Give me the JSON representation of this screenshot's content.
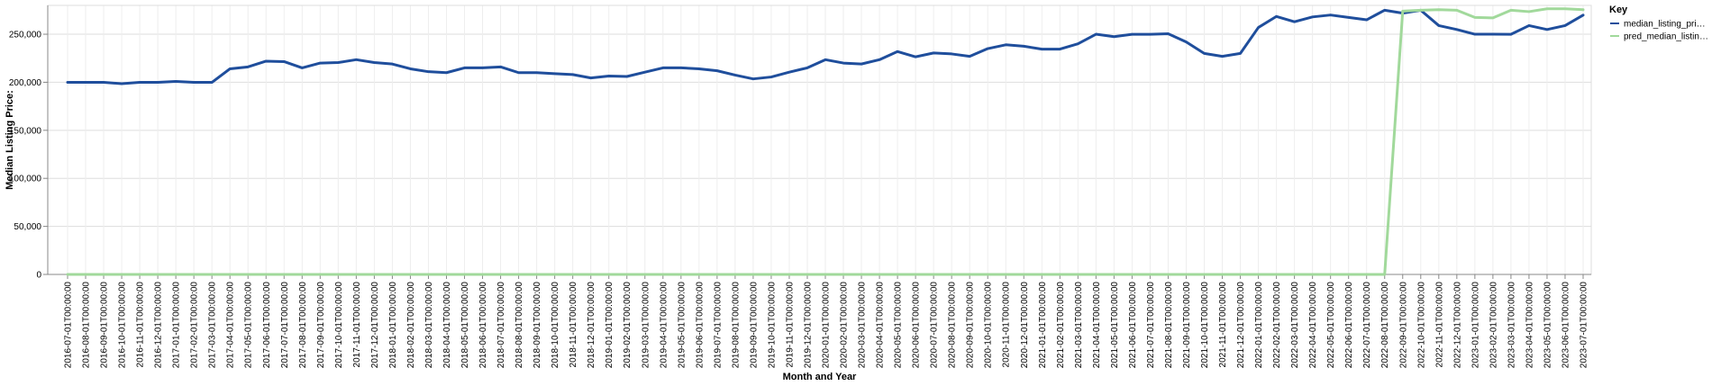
{
  "chart_data": {
    "type": "line",
    "xlabel": "Month and Year",
    "ylabel": "Median Listing Price:",
    "ylim": [
      0,
      280000
    ],
    "yticks": [
      0,
      50000,
      100000,
      150000,
      200000,
      250000
    ],
    "ytick_labels": [
      "0",
      "50,000",
      "100,000",
      "150,000",
      "200,000",
      "250,000"
    ],
    "grid": true,
    "legend": {
      "title": "Key",
      "placement": "right"
    },
    "x": [
      "2016-07-01T00:00:00",
      "2016-08-01T00:00:00",
      "2016-09-01T00:00:00",
      "2016-10-01T00:00:00",
      "2016-11-01T00:00:00",
      "2016-12-01T00:00:00",
      "2017-01-01T00:00:00",
      "2017-02-01T00:00:00",
      "2017-03-01T00:00:00",
      "2017-04-01T00:00:00",
      "2017-05-01T00:00:00",
      "2017-06-01T00:00:00",
      "2017-07-01T00:00:00",
      "2017-08-01T00:00:00",
      "2017-09-01T00:00:00",
      "2017-10-01T00:00:00",
      "2017-11-01T00:00:00",
      "2017-12-01T00:00:00",
      "2018-01-01T00:00:00",
      "2018-02-01T00:00:00",
      "2018-03-01T00:00:00",
      "2018-04-01T00:00:00",
      "2018-05-01T00:00:00",
      "2018-06-01T00:00:00",
      "2018-07-01T00:00:00",
      "2018-08-01T00:00:00",
      "2018-09-01T00:00:00",
      "2018-10-01T00:00:00",
      "2018-11-01T00:00:00",
      "2018-12-01T00:00:00",
      "2019-01-01T00:00:00",
      "2019-02-01T00:00:00",
      "2019-03-01T00:00:00",
      "2019-04-01T00:00:00",
      "2019-05-01T00:00:00",
      "2019-06-01T00:00:00",
      "2019-07-01T00:00:00",
      "2019-08-01T00:00:00",
      "2019-09-01T00:00:00",
      "2019-10-01T00:00:00",
      "2019-11-01T00:00:00",
      "2019-12-01T00:00:00",
      "2020-01-01T00:00:00",
      "2020-02-01T00:00:00",
      "2020-03-01T00:00:00",
      "2020-04-01T00:00:00",
      "2020-05-01T00:00:00",
      "2020-06-01T00:00:00",
      "2020-07-01T00:00:00",
      "2020-08-01T00:00:00",
      "2020-09-01T00:00:00",
      "2020-10-01T00:00:00",
      "2020-11-01T00:00:00",
      "2020-12-01T00:00:00",
      "2021-01-01T00:00:00",
      "2021-02-01T00:00:00",
      "2021-03-01T00:00:00",
      "2021-04-01T00:00:00",
      "2021-05-01T00:00:00",
      "2021-06-01T00:00:00",
      "2021-07-01T00:00:00",
      "2021-08-01T00:00:00",
      "2021-09-01T00:00:00",
      "2021-10-01T00:00:00",
      "2021-11-01T00:00:00",
      "2021-12-01T00:00:00",
      "2022-01-01T00:00:00",
      "2022-02-01T00:00:00",
      "2022-03-01T00:00:00",
      "2022-04-01T00:00:00",
      "2022-05-01T00:00:00",
      "2022-06-01T00:00:00",
      "2022-07-01T00:00:00",
      "2022-08-01T00:00:00",
      "2022-09-01T00:00:00",
      "2022-10-01T00:00:00",
      "2022-11-01T00:00:00",
      "2022-12-01T00:00:00",
      "2023-01-01T00:00:00",
      "2023-02-01T00:00:00",
      "2023-03-01T00:00:00",
      "2023-04-01T00:00:00",
      "2023-05-01T00:00:00",
      "2023-06-01T00:00:00",
      "2023-07-01T00:00:00"
    ],
    "series": [
      {
        "name": "median_listing_pri…",
        "color": "#1f4e9c",
        "values": [
          199900,
          199900,
          199900,
          198500,
          199900,
          199900,
          200900,
          199900,
          199900,
          214000,
          216000,
          222000,
          221500,
          215000,
          220000,
          220500,
          223500,
          220500,
          219000,
          214000,
          211000,
          210000,
          215000,
          215000,
          216000,
          210000,
          210000,
          209000,
          208000,
          204500,
          206500,
          206000,
          210500,
          215000,
          215000,
          214000,
          212000,
          207500,
          203500,
          205500,
          210500,
          215000,
          223500,
          220000,
          219000,
          223500,
          232000,
          226500,
          230500,
          229500,
          227000,
          235000,
          239000,
          237500,
          234500,
          234500,
          240000,
          250000,
          247500,
          249900,
          249900,
          250500,
          242000,
          230000,
          227000,
          230000,
          257000,
          268500,
          263000,
          268000,
          270000,
          267500,
          265000,
          275000,
          271900,
          275000,
          259000,
          254900,
          250000,
          250000,
          249900,
          259000,
          254900,
          259000,
          269900
        ]
      },
      {
        "name": "pred_median_listin…",
        "color": "#a1d99b",
        "values": [
          0,
          0,
          0,
          0,
          0,
          0,
          0,
          0,
          0,
          0,
          0,
          0,
          0,
          0,
          0,
          0,
          0,
          0,
          0,
          0,
          0,
          0,
          0,
          0,
          0,
          0,
          0,
          0,
          0,
          0,
          0,
          0,
          0,
          0,
          0,
          0,
          0,
          0,
          0,
          0,
          0,
          0,
          0,
          0,
          0,
          0,
          0,
          0,
          0,
          0,
          0,
          0,
          0,
          0,
          0,
          0,
          0,
          0,
          0,
          0,
          0,
          0,
          0,
          0,
          0,
          0,
          0,
          0,
          0,
          0,
          0,
          0,
          0,
          0,
          274000,
          275000,
          275500,
          275000,
          267500,
          267000,
          275000,
          273500,
          276500,
          276500,
          275500
        ]
      }
    ]
  }
}
